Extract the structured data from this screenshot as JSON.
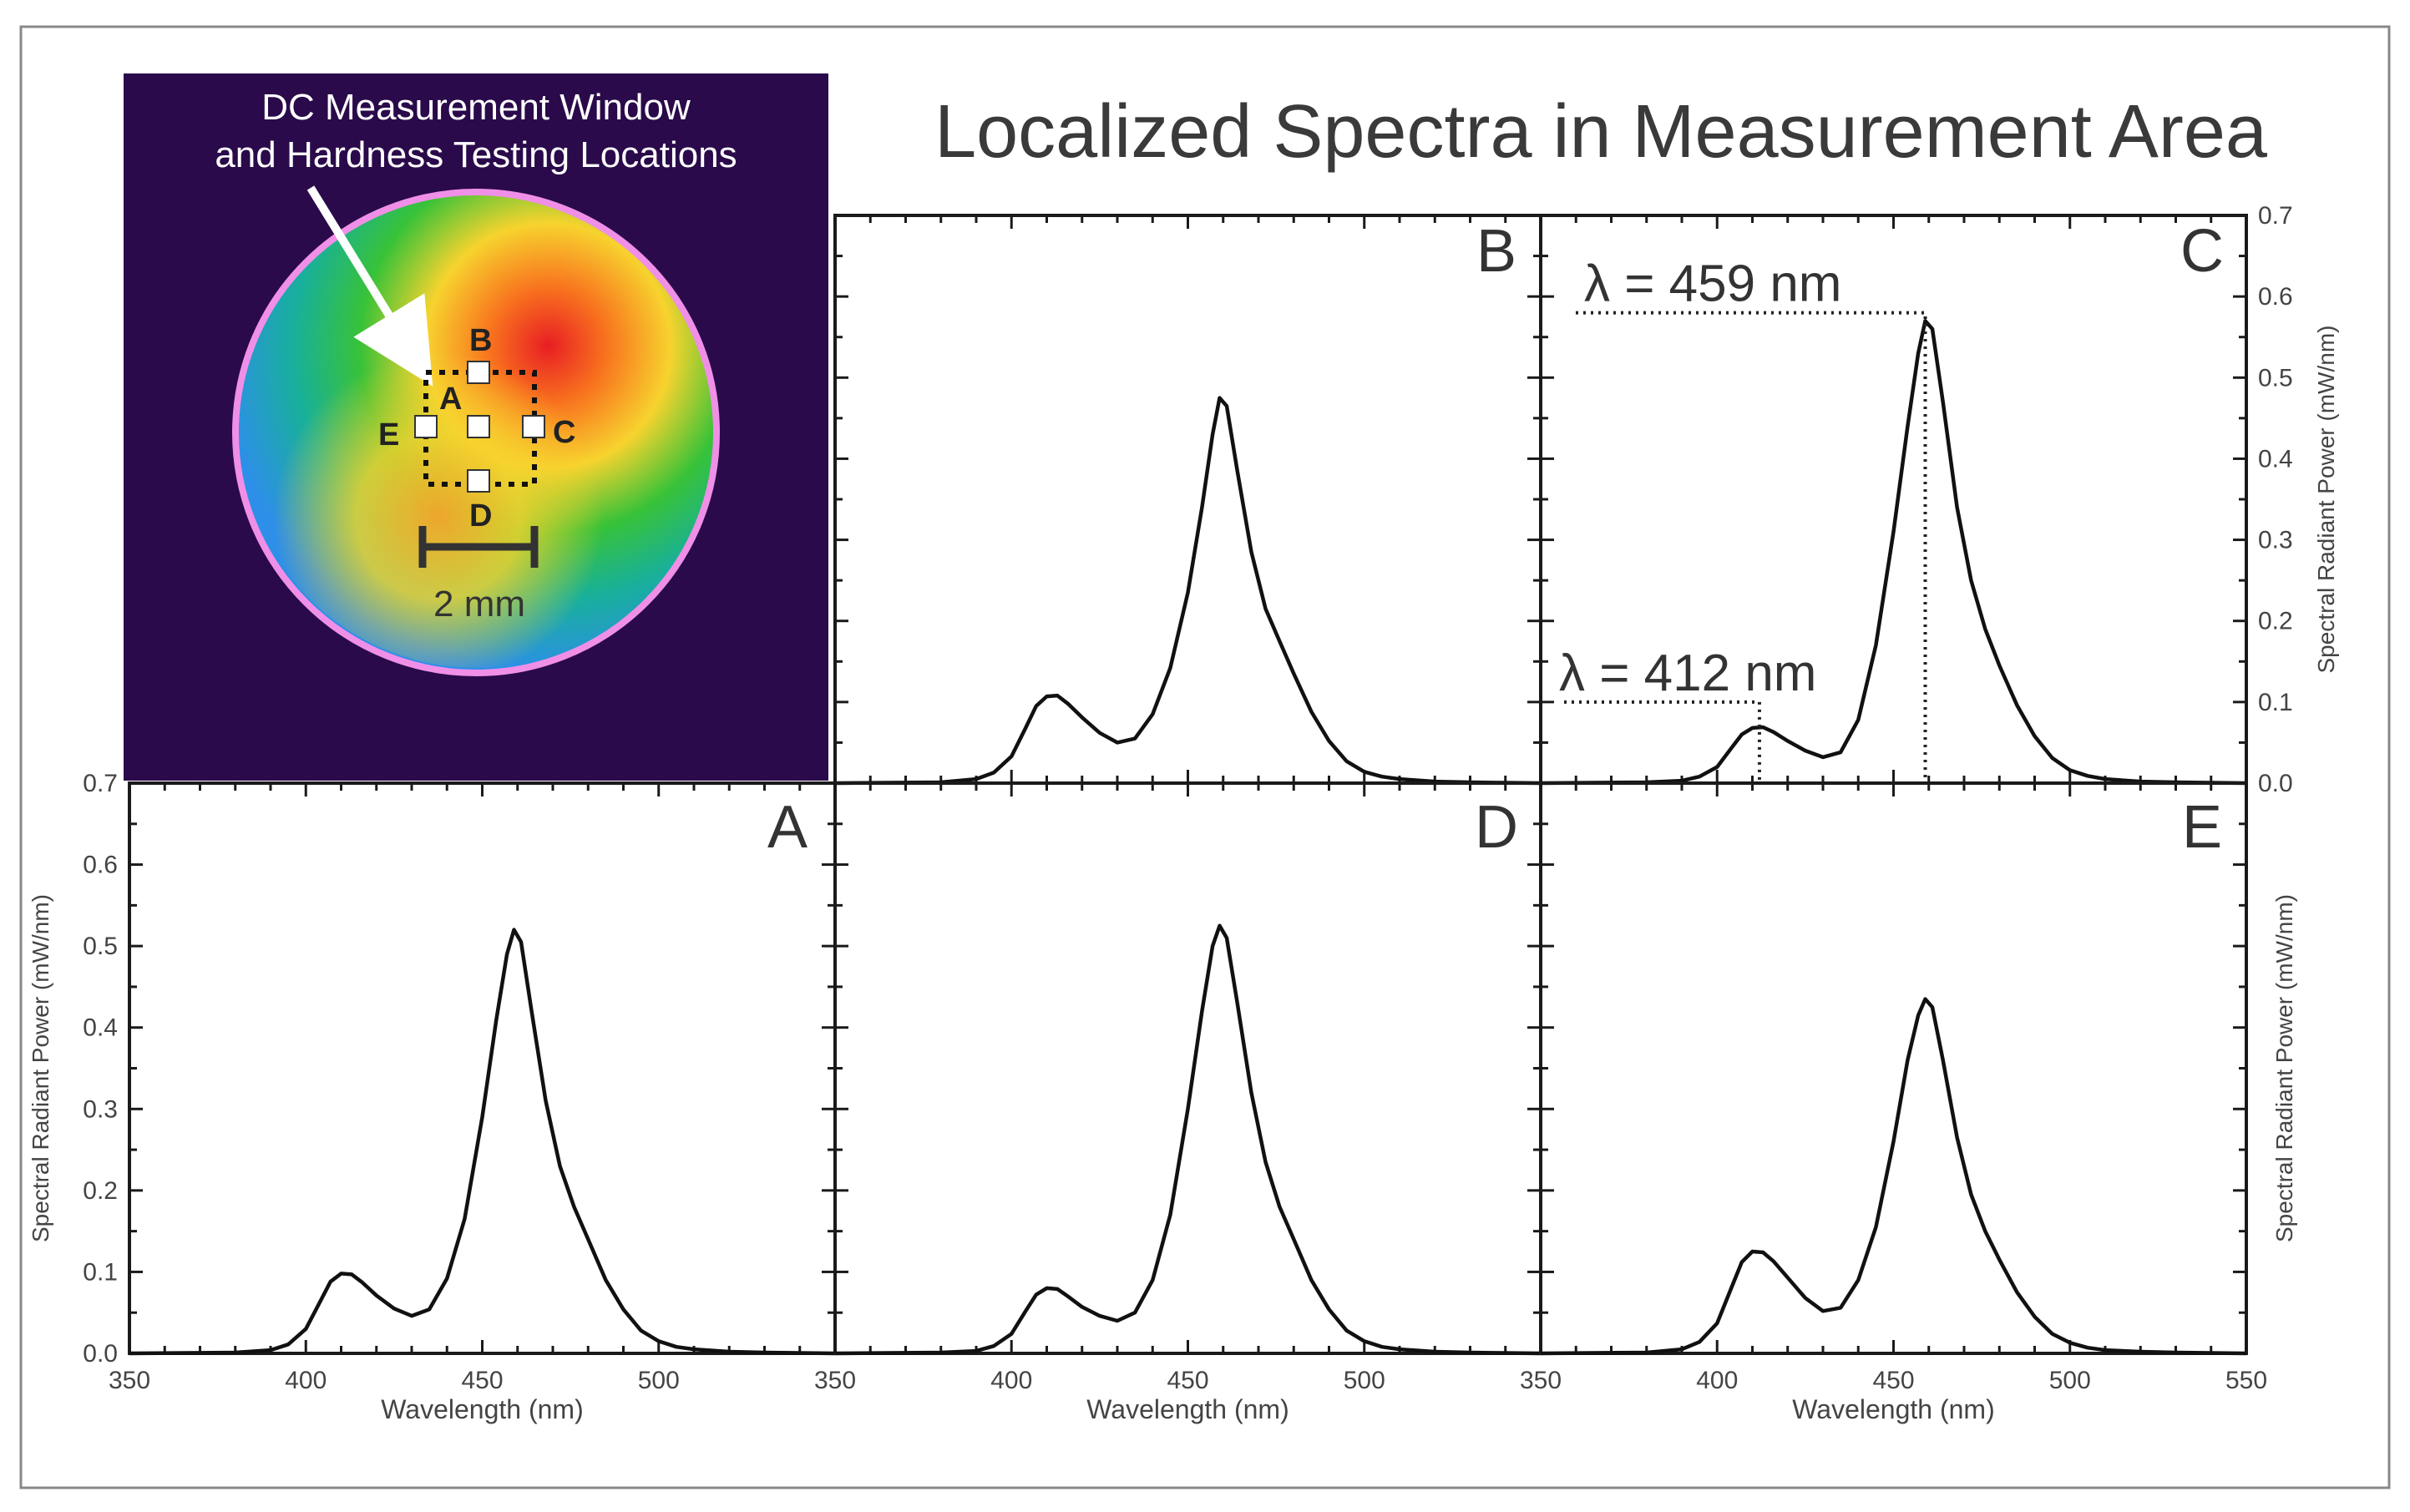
{
  "title": "Localized Spectra in Measurement Area",
  "thermal_image": {
    "annotation_line1": "DC Measurement Window",
    "annotation_line2": "and Hardness Testing Locations",
    "scale_bar_label": "2 mm",
    "point_labels": {
      "A": "A",
      "B": "B",
      "C": "C",
      "D": "D",
      "E": "E"
    },
    "colors": {
      "background": "#2a0a4a",
      "hot": "#f0401e",
      "warm": "#f7d32e",
      "mid": "#38c238",
      "cool": "#2d8fe8",
      "rim": "#f08fe8"
    }
  },
  "axes_text": {
    "xlabel": "Wavelength (nm)",
    "ylabel": "Spectral Radiant Power (mW/nm)",
    "x_tick_labels": [
      "350",
      "400",
      "450",
      "500"
    ],
    "x_tick_last": "550",
    "y_tick_labels": [
      "0.0",
      "0.1",
      "0.2",
      "0.3",
      "0.4",
      "0.5",
      "0.6",
      "0.7"
    ]
  },
  "annotations": {
    "peak_main": "λ = 459 nm",
    "peak_secondary": "λ = 412 nm"
  },
  "chart_data": [
    {
      "type": "line",
      "panel": "B",
      "xlim": [
        350,
        550
      ],
      "ylim": [
        0,
        0.7
      ],
      "xlabel": "",
      "ylabel": "",
      "x": [
        350,
        380,
        390,
        395,
        400,
        404,
        407,
        410,
        413,
        416,
        420,
        425,
        430,
        435,
        440,
        445,
        450,
        454,
        457,
        459,
        461,
        464,
        468,
        472,
        476,
        480,
        485,
        490,
        495,
        500,
        505,
        510,
        520,
        530,
        550
      ],
      "y": [
        0,
        0.001,
        0.005,
        0.013,
        0.033,
        0.068,
        0.095,
        0.107,
        0.108,
        0.098,
        0.081,
        0.062,
        0.05,
        0.055,
        0.085,
        0.142,
        0.235,
        0.34,
        0.43,
        0.475,
        0.465,
        0.385,
        0.285,
        0.215,
        0.175,
        0.135,
        0.088,
        0.052,
        0.027,
        0.014,
        0.008,
        0.005,
        0.002,
        0.001,
        0
      ]
    },
    {
      "type": "line",
      "panel": "C",
      "xlim": [
        350,
        550
      ],
      "ylim": [
        0,
        0.7
      ],
      "xlabel": "",
      "ylabel": "Spectral Radiant Power (mW/nm)",
      "x": [
        350,
        380,
        390,
        395,
        400,
        404,
        407,
        410,
        413,
        416,
        420,
        425,
        430,
        435,
        440,
        445,
        450,
        454,
        457,
        459,
        461,
        464,
        468,
        472,
        476,
        480,
        485,
        490,
        495,
        500,
        505,
        510,
        520,
        530,
        550
      ],
      "y": [
        0,
        0.001,
        0.003,
        0.008,
        0.02,
        0.043,
        0.06,
        0.068,
        0.069,
        0.063,
        0.052,
        0.04,
        0.032,
        0.038,
        0.078,
        0.17,
        0.31,
        0.44,
        0.53,
        0.57,
        0.56,
        0.47,
        0.34,
        0.25,
        0.19,
        0.145,
        0.096,
        0.058,
        0.031,
        0.016,
        0.009,
        0.005,
        0.002,
        0.001,
        0
      ]
    },
    {
      "type": "line",
      "panel": "A",
      "xlim": [
        350,
        550
      ],
      "ylim": [
        0,
        0.7
      ],
      "xlabel": "Wavelength (nm)",
      "ylabel": "Spectral Radiant Power (mW/nm)",
      "x": [
        350,
        380,
        390,
        395,
        400,
        404,
        407,
        410,
        413,
        416,
        420,
        425,
        430,
        435,
        440,
        445,
        450,
        454,
        457,
        459,
        461,
        464,
        468,
        472,
        476,
        480,
        485,
        490,
        495,
        500,
        505,
        510,
        520,
        530,
        550
      ],
      "y": [
        0,
        0.001,
        0.004,
        0.011,
        0.03,
        0.063,
        0.088,
        0.098,
        0.097,
        0.087,
        0.071,
        0.055,
        0.046,
        0.054,
        0.092,
        0.165,
        0.29,
        0.41,
        0.49,
        0.52,
        0.505,
        0.42,
        0.31,
        0.23,
        0.18,
        0.14,
        0.09,
        0.054,
        0.028,
        0.015,
        0.008,
        0.005,
        0.002,
        0.001,
        0
      ]
    },
    {
      "type": "line",
      "panel": "D",
      "xlim": [
        350,
        550
      ],
      "ylim": [
        0,
        0.7
      ],
      "xlabel": "Wavelength (nm)",
      "ylabel": "",
      "x": [
        350,
        380,
        390,
        395,
        400,
        404,
        407,
        410,
        413,
        416,
        420,
        425,
        430,
        435,
        440,
        445,
        450,
        454,
        457,
        459,
        461,
        464,
        468,
        472,
        476,
        480,
        485,
        490,
        495,
        500,
        505,
        510,
        520,
        530,
        550
      ],
      "y": [
        0,
        0.001,
        0.003,
        0.009,
        0.024,
        0.052,
        0.072,
        0.08,
        0.079,
        0.07,
        0.057,
        0.046,
        0.04,
        0.05,
        0.09,
        0.17,
        0.3,
        0.42,
        0.5,
        0.525,
        0.51,
        0.43,
        0.32,
        0.235,
        0.18,
        0.14,
        0.09,
        0.054,
        0.028,
        0.015,
        0.008,
        0.005,
        0.002,
        0.001,
        0
      ]
    },
    {
      "type": "line",
      "panel": "E",
      "xlim": [
        350,
        550
      ],
      "ylim": [
        0,
        0.7
      ],
      "xlabel": "Wavelength (nm)",
      "ylabel": "Spectral Radiant Power (mW/nm)",
      "x": [
        350,
        380,
        390,
        395,
        400,
        404,
        407,
        410,
        413,
        416,
        420,
        425,
        430,
        435,
        440,
        445,
        450,
        454,
        457,
        459,
        461,
        464,
        468,
        472,
        476,
        480,
        485,
        490,
        495,
        500,
        505,
        510,
        520,
        530,
        550
      ],
      "y": [
        0,
        0.001,
        0.005,
        0.014,
        0.037,
        0.08,
        0.112,
        0.125,
        0.124,
        0.113,
        0.093,
        0.068,
        0.052,
        0.056,
        0.09,
        0.155,
        0.26,
        0.36,
        0.415,
        0.435,
        0.425,
        0.36,
        0.265,
        0.195,
        0.15,
        0.115,
        0.075,
        0.045,
        0.024,
        0.013,
        0.007,
        0.004,
        0.002,
        0.001,
        0
      ]
    }
  ]
}
